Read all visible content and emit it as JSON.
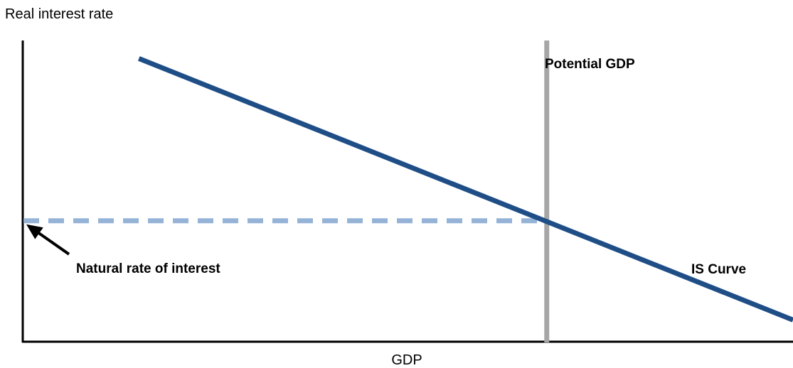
{
  "chart_data": {
    "type": "line",
    "ylabel": "Real interest rate",
    "xlabel": "GDP",
    "xlim": [
      0,
      100
    ],
    "ylim": [
      0,
      100
    ],
    "grid": false,
    "legend": "none",
    "series": [
      {
        "name": "IS Curve",
        "color": "#1f4e87",
        "x": [
          15,
          100
        ],
        "y": [
          94,
          7
        ]
      }
    ],
    "potential_gdp": {
      "label": "Potential GDP",
      "x": 68,
      "color": "#a6a6a6"
    },
    "natural_rate": {
      "label": "Natural rate of interest",
      "y": 40,
      "x_end": 68,
      "color": "#95b3d7"
    },
    "arrow_color": "#000000"
  }
}
